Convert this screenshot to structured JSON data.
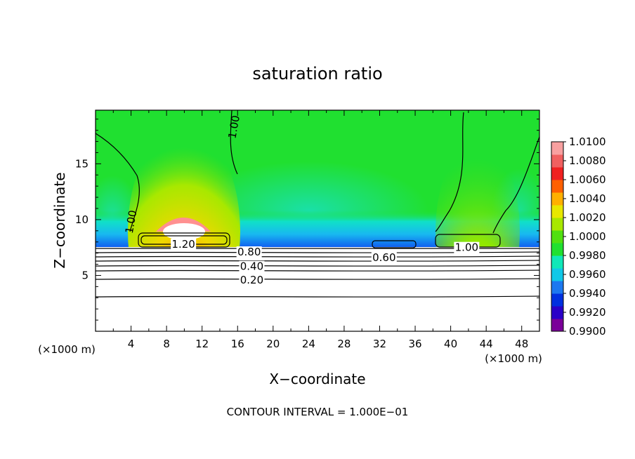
{
  "chart_data": {
    "type": "heatmap",
    "title": "saturation ratio",
    "xlabel": "X−coordinate",
    "ylabel": "Z−coordinate",
    "x_unit": "(×1000 m)",
    "y_unit": "(×1000 m)",
    "xlim": [
      0,
      50
    ],
    "ylim": [
      0,
      19.8
    ],
    "xticks": [
      4,
      8,
      12,
      16,
      20,
      24,
      28,
      32,
      36,
      40,
      44,
      48
    ],
    "yticks": [
      5,
      10,
      15
    ],
    "note": "CONTOUR INTERVAL = 1.000E−01",
    "colorbar": {
      "min": 0.99,
      "max": 1.01,
      "ticks": [
        "1.0100",
        "1.0080",
        "1.0060",
        "1.0040",
        "1.0020",
        "1.0000",
        "0.9980",
        "0.9960",
        "0.9940",
        "0.9920",
        "0.9900"
      ],
      "colors": [
        "#7a0099",
        "#2a00c8",
        "#0030e0",
        "#1c78f0",
        "#10c8e8",
        "#10e8b8",
        "#20e030",
        "#50e010",
        "#a8e800",
        "#e8e800",
        "#ffb000",
        "#ff6000",
        "#f02020",
        "#f06060",
        "#f8a0a0"
      ]
    },
    "contour_labels": [
      {
        "text": "1.00",
        "x": 15.6,
        "z": 18.3
      },
      {
        "text": "1.00",
        "x": 4.0,
        "z": 9.8
      },
      {
        "text": "1.20",
        "x": 9.9,
        "z": 7.8
      },
      {
        "text": "0.80",
        "x": 17.3,
        "z": 7.1
      },
      {
        "text": "0.40",
        "x": 17.6,
        "z": 5.8
      },
      {
        "text": "0.20",
        "x": 17.6,
        "z": 4.6
      },
      {
        "text": "0.60",
        "x": 32.5,
        "z": 6.6
      },
      {
        "text": "1.00",
        "x": 41.8,
        "z": 7.5
      }
    ],
    "contour_levels_lower": [
      0.2,
      0.3,
      0.4,
      0.5,
      0.6,
      0.7,
      0.8,
      0.9,
      1.0
    ]
  }
}
